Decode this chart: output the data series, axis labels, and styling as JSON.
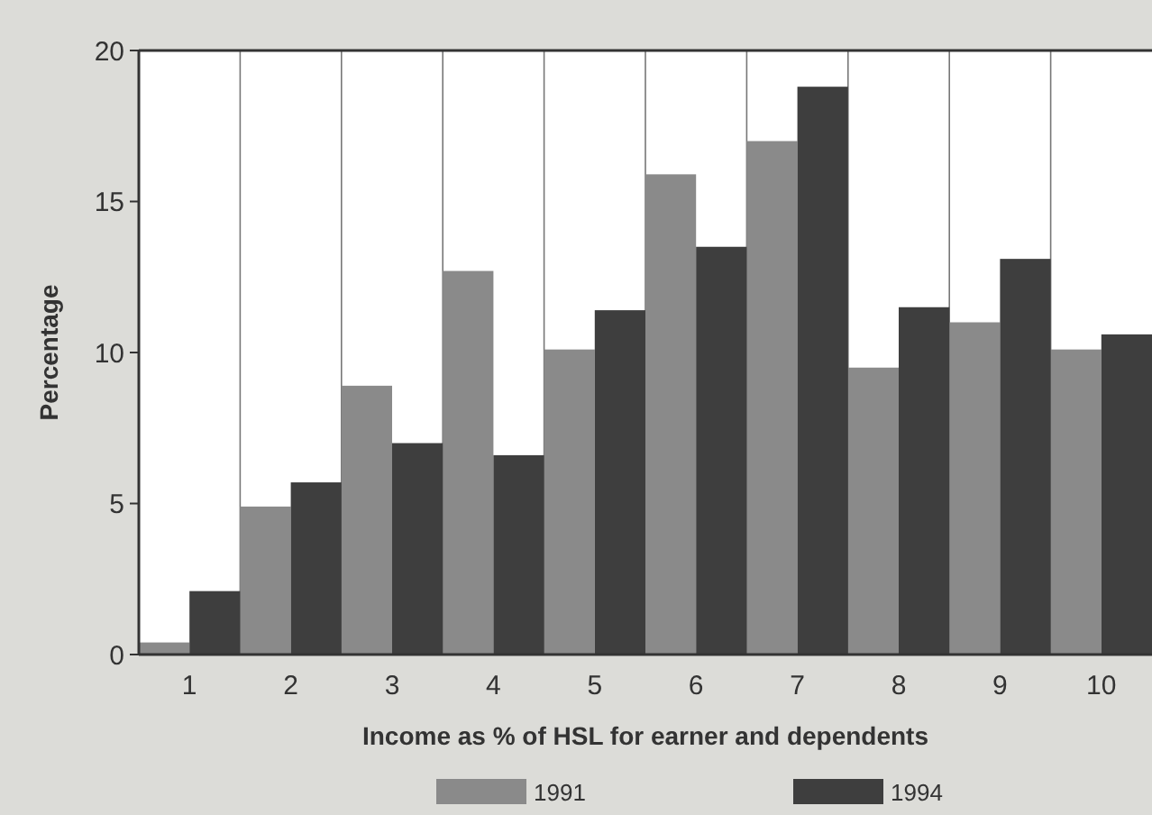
{
  "chart_data": {
    "type": "bar",
    "xlabel": "Income as % of HSL for earner and dependents",
    "ylabel": "Percentage",
    "categories": [
      "1",
      "2",
      "3",
      "4",
      "5",
      "6",
      "7",
      "8",
      "9",
      "10"
    ],
    "series": [
      {
        "name": "1991",
        "color": "#8a8a8a",
        "values": [
          0.4,
          4.9,
          8.9,
          12.7,
          10.1,
          15.9,
          17.0,
          9.5,
          11.0,
          10.1
        ]
      },
      {
        "name": "1994",
        "color": "#3e3e3e",
        "values": [
          2.1,
          5.7,
          7.0,
          6.6,
          11.4,
          13.5,
          18.8,
          11.5,
          13.1,
          10.6
        ]
      }
    ],
    "ylim": [
      0,
      20
    ],
    "yticks": [
      0,
      5,
      10,
      15,
      20
    ],
    "grid": "x",
    "legend": "bottom"
  }
}
